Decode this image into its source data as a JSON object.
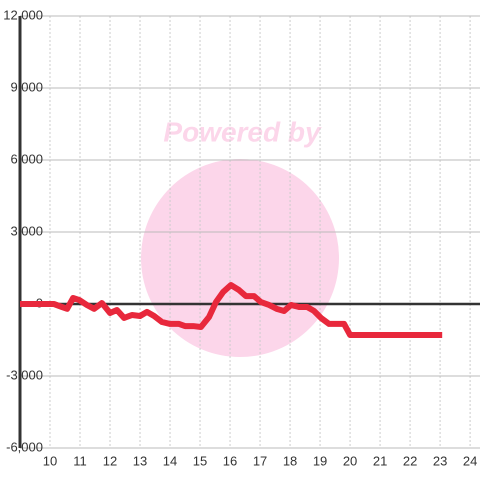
{
  "watermark": "Powered by",
  "chart_data": {
    "type": "line",
    "x": [
      9.0,
      10.13,
      10.4,
      10.57,
      10.77,
      10.97,
      11.23,
      11.47,
      11.73,
      12.0,
      12.23,
      12.47,
      12.73,
      13.0,
      13.23,
      13.47,
      13.73,
      14.0,
      14.3,
      14.5,
      14.77,
      15.03,
      15.3,
      15.53,
      15.77,
      16.03,
      16.3,
      16.53,
      16.8,
      17.03,
      17.3,
      17.57,
      17.8,
      18.03,
      18.3,
      18.57,
      18.8,
      19.03,
      19.3,
      19.8,
      20.0,
      23.07
    ],
    "series": [
      {
        "color": "#e8283c",
        "values": [
          0,
          0,
          -125,
          -200,
          250,
          170,
          -40,
          -200,
          40,
          -375,
          -250,
          -580,
          -460,
          -500,
          -330,
          -500,
          -750,
          -830,
          -830,
          -920,
          -920,
          -960,
          -540,
          80,
          500,
          790,
          580,
          330,
          330,
          80,
          -40,
          -210,
          -290,
          -40,
          -125,
          -125,
          -290,
          -580,
          -830,
          -830,
          -1290,
          -1290
        ]
      }
    ],
    "xlim": [
      9,
      24.33
    ],
    "xticks": [
      10,
      11,
      12,
      13,
      14,
      15,
      16,
      17,
      18,
      19,
      20,
      21,
      22,
      23,
      24
    ],
    "ylim": [
      -6000,
      12000
    ],
    "yticks": [
      {
        "value": -6000,
        "label": "-6,000"
      },
      {
        "value": -3000,
        "label": "-3,000"
      },
      0,
      {
        "value": 3000,
        "label": "3,000"
      },
      {
        "value": 6000,
        "label": "6,000"
      },
      {
        "value": 9000,
        "label": "9,000"
      },
      {
        "value": 12000,
        "label": "12,000"
      }
    ],
    "grid": true
  }
}
